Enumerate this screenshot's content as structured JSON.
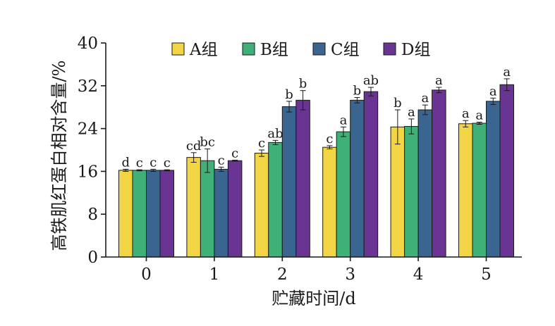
{
  "chart_data": {
    "type": "bar",
    "title": "",
    "xlabel": "贮藏时间/d",
    "ylabel": "高铁肌红蛋白相对含量/%",
    "categories": [
      "0",
      "1",
      "2",
      "3",
      "4",
      "5"
    ],
    "ylim": [
      0,
      40
    ],
    "yticks": [
      0,
      8,
      16,
      24,
      32,
      40
    ],
    "grid": false,
    "legend_position": "top",
    "series": [
      {
        "name": "A组",
        "color": "#f2d544",
        "values": [
          16.2,
          18.6,
          19.4,
          20.5,
          24.3,
          24.9
        ],
        "errors": [
          0.2,
          0.9,
          0.6,
          0.3,
          3.2,
          0.6
        ],
        "labels": [
          "d",
          "cd",
          "c",
          "c",
          "b",
          "a"
        ]
      },
      {
        "name": "B组",
        "color": "#3fb178",
        "values": [
          16.2,
          18.0,
          21.4,
          23.4,
          24.4,
          25.0
        ],
        "errors": [
          0.1,
          2.2,
          0.4,
          0.9,
          1.4,
          0.2
        ],
        "labels": [
          "c",
          "bc",
          "ab",
          "a",
          "a",
          "a"
        ]
      },
      {
        "name": "C组",
        "color": "#3a6590",
        "values": [
          16.2,
          16.4,
          28.1,
          29.3,
          27.5,
          29.1
        ],
        "errors": [
          0.2,
          0.4,
          1.0,
          0.5,
          0.9,
          0.6
        ],
        "labels": [
          "c",
          "c",
          "b",
          "b",
          "a",
          "a"
        ]
      },
      {
        "name": "D组",
        "color": "#6a3592",
        "values": [
          16.2,
          18.0,
          29.3,
          30.9,
          31.2,
          32.2
        ],
        "errors": [
          0.1,
          0.1,
          1.8,
          0.8,
          0.5,
          1.1
        ],
        "labels": [
          "c",
          "c",
          "b",
          "ab",
          "a",
          "a"
        ]
      }
    ]
  }
}
